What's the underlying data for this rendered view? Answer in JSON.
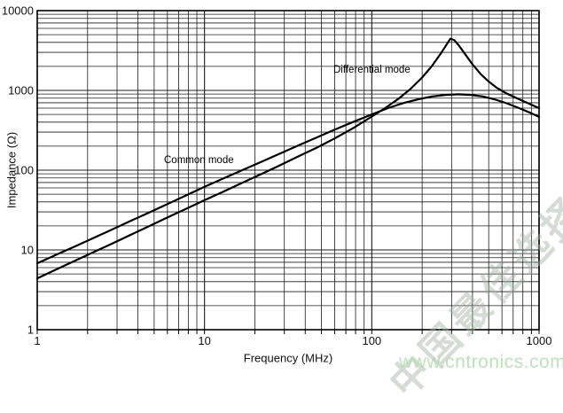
{
  "chart_data": {
    "type": "line",
    "title": "",
    "xlabel": "Frequency (MHz)",
    "ylabel": "Impedance (Ω)",
    "x_scale": "log",
    "y_scale": "log",
    "xlim": [
      1,
      1000
    ],
    "ylim": [
      1,
      10000
    ],
    "x_ticks": [
      1,
      10,
      100,
      1000
    ],
    "x_tick_labels": [
      "1",
      "10",
      "100",
      "1000"
    ],
    "y_ticks": [
      1,
      10,
      100,
      1000,
      10000
    ],
    "y_tick_labels": [
      "1",
      "10",
      "100",
      "1000",
      "10000"
    ],
    "grid": {
      "major": true,
      "minor": true,
      "style": "full black log-log grid with all minor decade lines"
    },
    "legend_position": "inline-annotations",
    "series": [
      {
        "name": "Common mode",
        "points": [
          [
            1,
            6.8
          ],
          [
            1.3,
            8.7
          ],
          [
            1.7,
            11.2
          ],
          [
            2.2,
            14.3
          ],
          [
            2.8,
            18
          ],
          [
            3.6,
            23
          ],
          [
            4.6,
            29
          ],
          [
            6,
            37.5
          ],
          [
            7.7,
            48
          ],
          [
            10,
            62
          ],
          [
            13,
            79
          ],
          [
            17,
            101
          ],
          [
            22,
            128
          ],
          [
            28,
            160
          ],
          [
            36,
            202
          ],
          [
            47,
            258
          ],
          [
            60,
            322
          ],
          [
            78,
            405
          ],
          [
            100,
            500
          ],
          [
            125,
            600
          ],
          [
            155,
            695
          ],
          [
            190,
            775
          ],
          [
            230,
            840
          ],
          [
            280,
            880
          ],
          [
            330,
            893
          ],
          [
            390,
            878
          ],
          [
            460,
            840
          ],
          [
            540,
            775
          ],
          [
            640,
            690
          ],
          [
            760,
            600
          ],
          [
            880,
            527
          ],
          [
            1000,
            465
          ]
        ]
      },
      {
        "name": "Differential mode",
        "points": [
          [
            1,
            4.4
          ],
          [
            1.3,
            5.7
          ],
          [
            1.7,
            7.4
          ],
          [
            2.2,
            9.5
          ],
          [
            2.8,
            12
          ],
          [
            3.6,
            15.4
          ],
          [
            4.6,
            19.6
          ],
          [
            6,
            25.5
          ],
          [
            7.7,
            32.5
          ],
          [
            10,
            42
          ],
          [
            13,
            54
          ],
          [
            17,
            70
          ],
          [
            22,
            90
          ],
          [
            28,
            114
          ],
          [
            36,
            147
          ],
          [
            47,
            192
          ],
          [
            60,
            250
          ],
          [
            78,
            340
          ],
          [
            100,
            470
          ],
          [
            120,
            600
          ],
          [
            145,
            790
          ],
          [
            170,
            1040
          ],
          [
            200,
            1450
          ],
          [
            230,
            2050
          ],
          [
            260,
            2950
          ],
          [
            280,
            3750
          ],
          [
            295,
            4450
          ],
          [
            312,
            4250
          ],
          [
            330,
            3700
          ],
          [
            360,
            2880
          ],
          [
            400,
            2120
          ],
          [
            450,
            1580
          ],
          [
            500,
            1290
          ],
          [
            560,
            1075
          ],
          [
            640,
            915
          ],
          [
            740,
            795
          ],
          [
            860,
            690
          ],
          [
            1000,
            600
          ]
        ]
      }
    ],
    "annotations": [
      {
        "text": "Common mode",
        "near_data_point": [
          20,
          120
        ]
      },
      {
        "text": "Differential mode",
        "near_data_point": [
          70,
          1500
        ]
      }
    ],
    "notes": "Curves cross near 115 MHz at ~600 Ω; differential mode peaks ~4500 Ω at ~295 MHz; common mode broad maximum ~890 Ω near 300 MHz"
  },
  "watermarks": {
    "site_text": "www.cntronics.com",
    "site_color": "#b3dcb0",
    "slogan_text": "中国最佳选择",
    "slogan_color": "#a3b1a3"
  }
}
